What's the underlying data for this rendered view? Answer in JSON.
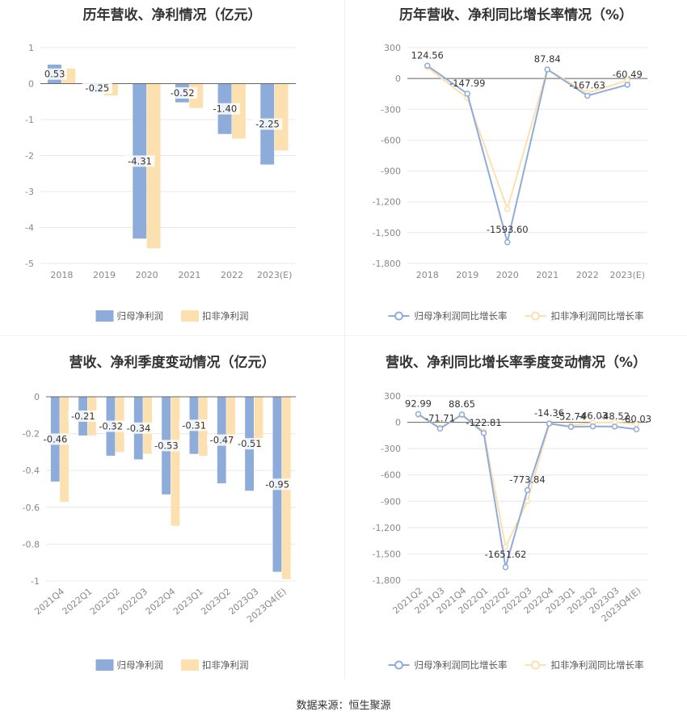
{
  "footer": {
    "source": "数据来源：恒生聚源"
  },
  "colors": {
    "series1": "#8eacd9",
    "series2": "#fde0b0",
    "grid": "#e8e8e8",
    "axis": "#888888"
  },
  "chart_data": [
    {
      "id": "p1",
      "type": "bar",
      "title": "历年营收、净利情况（亿元）",
      "categories": [
        "2018",
        "2019",
        "2020",
        "2021",
        "2022",
        "2023(E)"
      ],
      "yticks": [
        "1",
        "0",
        "-1",
        "-2",
        "-3",
        "-4",
        "-5"
      ],
      "ylim": [
        -5,
        1
      ],
      "series": [
        {
          "name": "归母净利润",
          "values": [
            0.53,
            -0.25,
            -4.31,
            -0.52,
            -1.4,
            -2.25
          ],
          "labels": [
            "0.53",
            "-0.25",
            "-4.31",
            "-0.52",
            "-1.40",
            "-2.25"
          ]
        },
        {
          "name": "扣非净利润",
          "values": [
            0.42,
            -0.33,
            -4.58,
            -0.68,
            -1.53,
            -1.86
          ]
        }
      ],
      "legend": "bottom"
    },
    {
      "id": "p2",
      "type": "line",
      "title": "历年营收、净利同比增长率情况（%）",
      "categories": [
        "2018",
        "2019",
        "2020",
        "2021",
        "2022",
        "2023(E)"
      ],
      "yticks": [
        "300",
        "0",
        "-300",
        "-600",
        "-900",
        "-1,200",
        "-1,500",
        "-1,800"
      ],
      "ylim": [
        -1800,
        300
      ],
      "series": [
        {
          "name": "归母净利润同比增长率",
          "values": [
            124.56,
            -147.99,
            -1593.6,
            87.84,
            -167.63,
            -60.49
          ],
          "labels": [
            "124.56",
            "-147.99",
            "-1593.60",
            "87.84",
            "-167.63",
            "-60.49"
          ]
        },
        {
          "name": "扣非净利润同比增长率",
          "values": [
            110,
            -190,
            -1270,
            90,
            -140,
            -20
          ]
        }
      ],
      "legend": "bottom"
    },
    {
      "id": "p3",
      "type": "bar",
      "title": "营收、净利季度变动情况（亿元）",
      "categories": [
        "2021Q4",
        "2022Q1",
        "2022Q2",
        "2022Q3",
        "2022Q4",
        "2023Q1",
        "2023Q2",
        "2023Q3",
        "2023Q4(E)"
      ],
      "yticks": [
        "0",
        "-0.2",
        "-0.4",
        "-0.6",
        "-0.8",
        "-1"
      ],
      "ylim": [
        -1,
        0
      ],
      "series": [
        {
          "name": "归母净利润",
          "values": [
            -0.46,
            -0.21,
            -0.32,
            -0.34,
            -0.53,
            -0.31,
            -0.47,
            -0.51,
            -0.95
          ],
          "labels": [
            "-0.46",
            "-0.21",
            "-0.32",
            "-0.34",
            "-0.53",
            "-0.31",
            "-0.47",
            "-0.51",
            "-0.95"
          ]
        },
        {
          "name": "扣非净利润",
          "values": [
            -0.57,
            -0.21,
            -0.3,
            -0.31,
            -0.7,
            -0.32,
            -0.26,
            -0.28,
            -0.99
          ]
        }
      ],
      "legend": "bottom"
    },
    {
      "id": "p4",
      "type": "line",
      "title": "营收、净利同比增长率季度变动情况（%）",
      "categories": [
        "2021Q2",
        "2021Q3",
        "2021Q4",
        "2022Q1",
        "2022Q2",
        "2022Q3",
        "2022Q4",
        "2023Q1",
        "2023Q2",
        "2023Q3",
        "2023Q4(E)"
      ],
      "yticks": [
        "300",
        "0",
        "-300",
        "-600",
        "-900",
        "-1,200",
        "-1,500",
        "-1,800"
      ],
      "ylim": [
        -1800,
        300
      ],
      "series": [
        {
          "name": "归母净利润同比增长率",
          "values": [
            92.99,
            -71.71,
            88.65,
            -122.81,
            -1651.62,
            -773.84,
            -14.36,
            -52.74,
            -46.03,
            -48.52,
            -80.03
          ],
          "labels": [
            "92.99",
            "-71.71",
            "88.65",
            "-122.81",
            "-1651.62",
            "-773.84",
            "-14.36",
            "-52.74",
            "-46.03",
            "-48.52",
            "-80.03"
          ]
        },
        {
          "name": "扣非净利润同比增长率",
          "values": [
            85,
            -60,
            80,
            -100,
            -1420,
            -900,
            -20,
            -40,
            -5,
            0,
            -20
          ]
        }
      ],
      "legend": "bottom"
    }
  ]
}
